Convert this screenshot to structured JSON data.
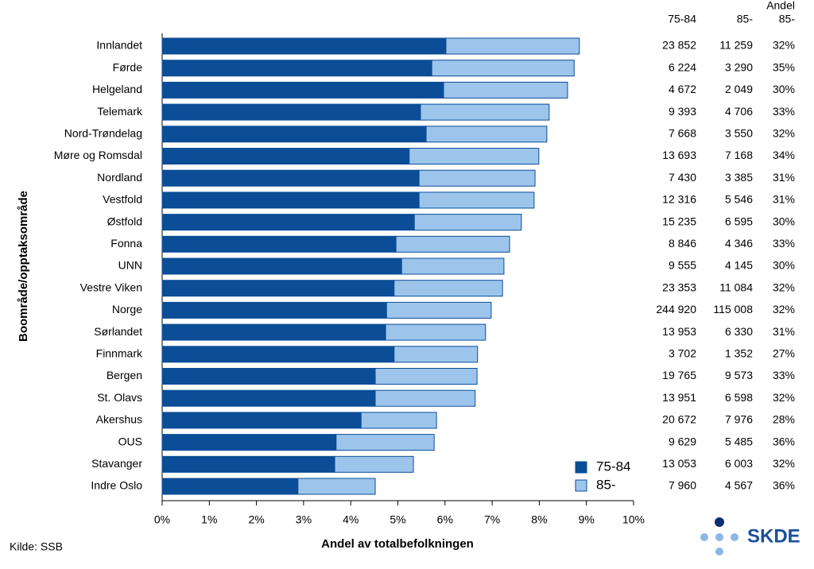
{
  "chart_data": {
    "type": "bar",
    "orientation": "horizontal",
    "stacked": true,
    "x_label": "Andel av totalbefolkningen",
    "y_label": "Boområde/opptaksområde",
    "categories": [
      "Innlandet",
      "Førde",
      "Helgeland",
      "Telemark",
      "Nord-Trøndelag",
      "Møre og Romsdal",
      "Nordland",
      "Vestfold",
      "Østfold",
      "Fonna",
      "UNN",
      "Vestre Viken",
      "Norge",
      "Sørlandet",
      "Finnmark",
      "Bergen",
      "St. Olavs",
      "Akershus",
      "OUS",
      "Stavanger",
      "Indre Oslo"
    ],
    "series": [
      {
        "name": "75-84",
        "color": "#0b4d96",
        "values": [
          6.02,
          5.72,
          5.97,
          5.48,
          5.6,
          5.24,
          5.45,
          5.45,
          5.35,
          4.96,
          5.08,
          4.92,
          4.76,
          4.74,
          4.92,
          4.52,
          4.52,
          4.22,
          3.69,
          3.66,
          2.88
        ]
      },
      {
        "name": "85-",
        "color": "#9dc5ec",
        "values": [
          2.83,
          3.02,
          2.63,
          2.73,
          2.56,
          2.75,
          2.46,
          2.44,
          2.27,
          2.41,
          2.17,
          2.3,
          2.22,
          2.12,
          1.77,
          2.16,
          2.12,
          1.6,
          2.08,
          1.67,
          1.64
        ]
      }
    ],
    "xlim": [
      0,
      10
    ],
    "xticks": [
      {
        "value": 0,
        "label": "0%"
      },
      {
        "value": 1,
        "label": "1%"
      },
      {
        "value": 2,
        "label": "2%"
      },
      {
        "value": 3,
        "label": "3%"
      },
      {
        "value": 4,
        "label": "4%"
      },
      {
        "value": 5,
        "label": "5%"
      },
      {
        "value": 6,
        "label": "6%"
      },
      {
        "value": 7,
        "label": "7%"
      },
      {
        "value": 8,
        "label": "8%"
      },
      {
        "value": 9,
        "label": "9%"
      },
      {
        "value": 10,
        "label": "10%"
      }
    ],
    "grid": false,
    "legend": "lower right",
    "table": {
      "columns": [
        [
          "75-84"
        ],
        [
          "85-"
        ],
        [
          "Andel",
          "85-"
        ]
      ],
      "rows": [
        [
          "23 852",
          "11 259",
          "32%"
        ],
        [
          "6 224",
          "3 290",
          "35%"
        ],
        [
          "4 672",
          "2 049",
          "30%"
        ],
        [
          "9 393",
          "4 706",
          "33%"
        ],
        [
          "7 668",
          "3 550",
          "32%"
        ],
        [
          "13 693",
          "7 168",
          "34%"
        ],
        [
          "7 430",
          "3 385",
          "31%"
        ],
        [
          "12 316",
          "5 546",
          "31%"
        ],
        [
          "15 235",
          "6 595",
          "30%"
        ],
        [
          "8 846",
          "4 346",
          "33%"
        ],
        [
          "9 555",
          "4 145",
          "30%"
        ],
        [
          "23 353",
          "11 084",
          "32%"
        ],
        [
          "244 920",
          "115 008",
          "32%"
        ],
        [
          "13 953",
          "6 330",
          "31%"
        ],
        [
          "3 702",
          "1 352",
          "27%"
        ],
        [
          "19 765",
          "9 573",
          "33%"
        ],
        [
          "13 951",
          "6 598",
          "32%"
        ],
        [
          "20 672",
          "7 976",
          "28%"
        ],
        [
          "9 629",
          "5 485",
          "36%"
        ],
        [
          "13 053",
          "6 003",
          "32%"
        ],
        [
          "7 960",
          "4 567",
          "36%"
        ]
      ]
    },
    "source": "Kilde: SSB",
    "logo": "SKDE"
  }
}
